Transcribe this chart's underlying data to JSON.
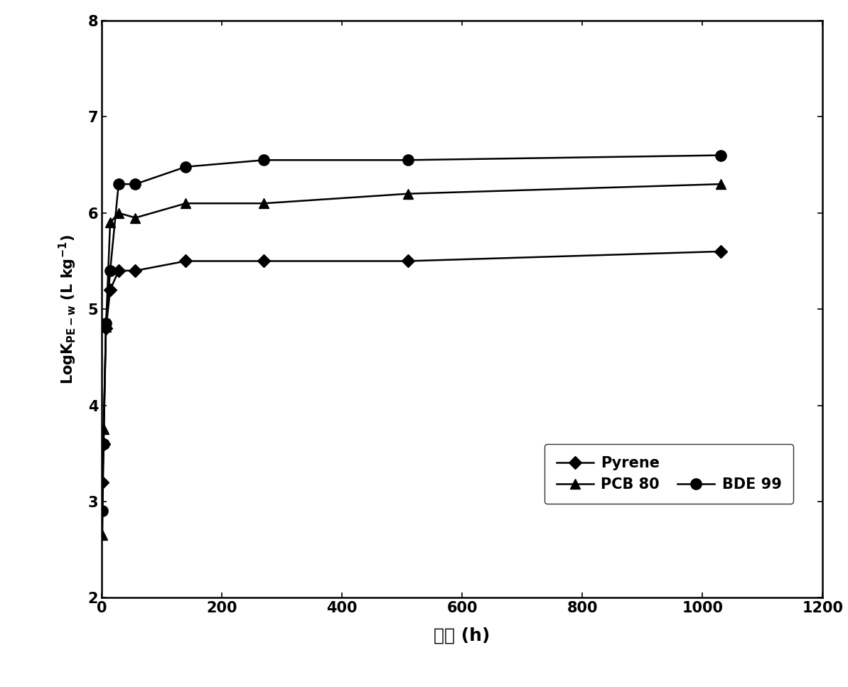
{
  "pyrene": {
    "x": [
      1,
      3,
      7,
      14,
      28,
      56,
      140,
      270,
      510,
      1030
    ],
    "y": [
      3.2,
      3.6,
      4.8,
      5.2,
      5.4,
      5.4,
      5.5,
      5.5,
      5.5,
      5.6
    ],
    "label": "Pyrene",
    "marker": "D",
    "color": "#000000"
  },
  "pcb80": {
    "x": [
      1,
      3,
      7,
      14,
      28,
      56,
      140,
      270,
      510,
      1030
    ],
    "y": [
      2.65,
      3.75,
      4.82,
      5.9,
      6.0,
      5.95,
      6.1,
      6.1,
      6.2,
      6.3
    ],
    "label": "PCB 80",
    "marker": "^",
    "color": "#000000"
  },
  "bde99": {
    "x": [
      1,
      3,
      7,
      14,
      28,
      56,
      140,
      270,
      510,
      1030
    ],
    "y": [
      2.9,
      3.6,
      4.85,
      5.4,
      6.3,
      6.3,
      6.48,
      6.55,
      6.55,
      6.6
    ],
    "label": "BDE 99",
    "marker": "o",
    "color": "#000000"
  },
  "xlim": [
    0,
    1200
  ],
  "ylim": [
    2,
    8
  ],
  "xlabel": "时间 (h)",
  "ylabel": "LogK$_\\mathregular{PE-w}$ (L kg$^\\mathregular{-1}$)",
  "xticks": [
    0,
    200,
    400,
    600,
    800,
    1000,
    1200
  ],
  "yticks": [
    2,
    3,
    4,
    5,
    6,
    7,
    8
  ],
  "background_color": "#ffffff",
  "line_color": "#000000",
  "markersize_pyrene": 9,
  "markersize_pcb80": 10,
  "markersize_bde99": 11,
  "linewidth": 1.8,
  "tick_labelsize": 15,
  "xlabel_fontsize": 18,
  "ylabel_fontsize": 15,
  "legend_fontsize": 15
}
